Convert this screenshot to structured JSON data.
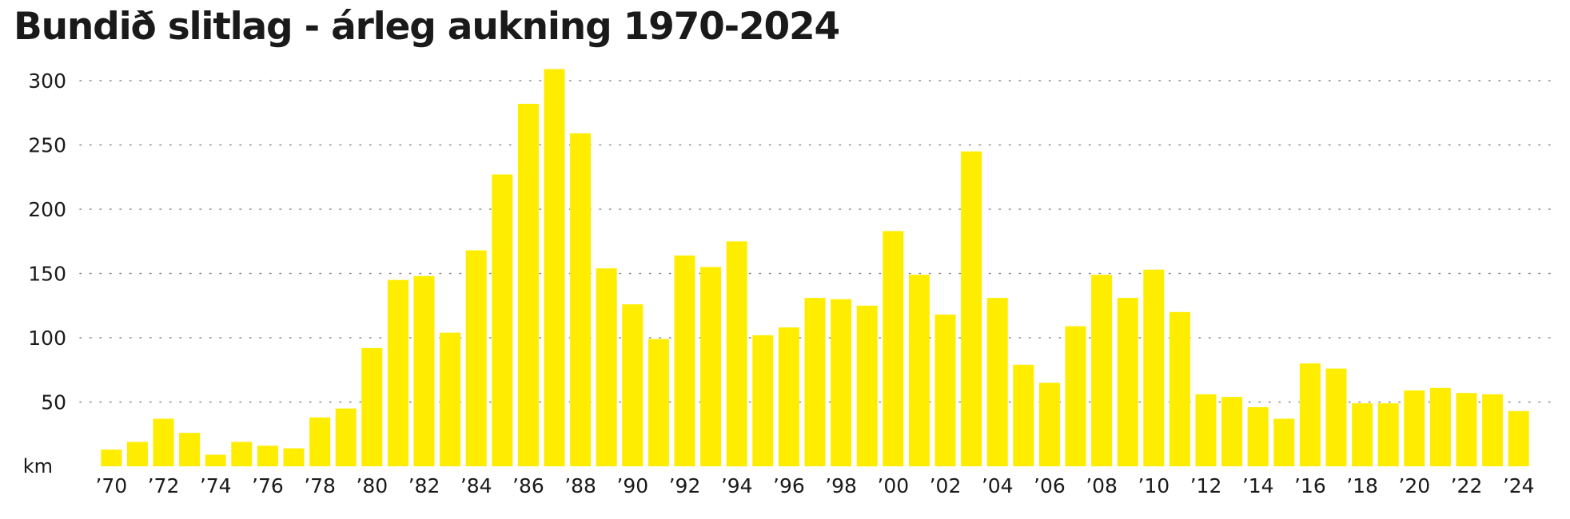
{
  "title": "Bundið slitlag - árleg aukning 1970-2024",
  "chart_data": {
    "type": "bar",
    "title": "Bundið slitlag - árleg aukning 1970-2024",
    "unit_label": "km",
    "xlabel": "",
    "ylabel": "km",
    "ylim": [
      0,
      300
    ],
    "y_ticks": [
      50,
      100,
      150,
      200,
      250,
      300
    ],
    "grid": "dotted horizontal",
    "bar_color": "#ffed00",
    "categories": [
      1970,
      1971,
      1972,
      1973,
      1974,
      1975,
      1976,
      1977,
      1978,
      1979,
      1980,
      1981,
      1982,
      1983,
      1984,
      1985,
      1986,
      1987,
      1988,
      1989,
      1990,
      1991,
      1992,
      1993,
      1994,
      1995,
      1996,
      1997,
      1998,
      1999,
      2000,
      2001,
      2002,
      2003,
      2004,
      2005,
      2006,
      2007,
      2008,
      2009,
      2010,
      2011,
      2012,
      2013,
      2014,
      2015,
      2016,
      2017,
      2018,
      2019,
      2020,
      2021,
      2022,
      2023,
      2024
    ],
    "values": [
      13,
      19,
      37,
      26,
      9,
      19,
      16,
      14,
      38,
      45,
      92,
      145,
      148,
      104,
      168,
      227,
      282,
      309,
      259,
      154,
      126,
      99,
      164,
      155,
      175,
      102,
      108,
      131,
      130,
      125,
      183,
      149,
      118,
      245,
      131,
      79,
      65,
      109,
      149,
      131,
      153,
      120,
      56,
      54,
      46,
      37,
      80,
      76,
      49,
      49,
      59,
      61,
      57,
      56,
      43
    ],
    "x_tick_labels": [
      "’70",
      "’72",
      "’74",
      "’76",
      "’78",
      "’80",
      "’82",
      "’84",
      "’86",
      "’88",
      "’90",
      "’92",
      "’94",
      "’96",
      "’98",
      "’00",
      "’02",
      "’04",
      "’06",
      "’08",
      "’10",
      "’12",
      "’14",
      "’16",
      "’18",
      "’20",
      "’22",
      "’24"
    ]
  }
}
